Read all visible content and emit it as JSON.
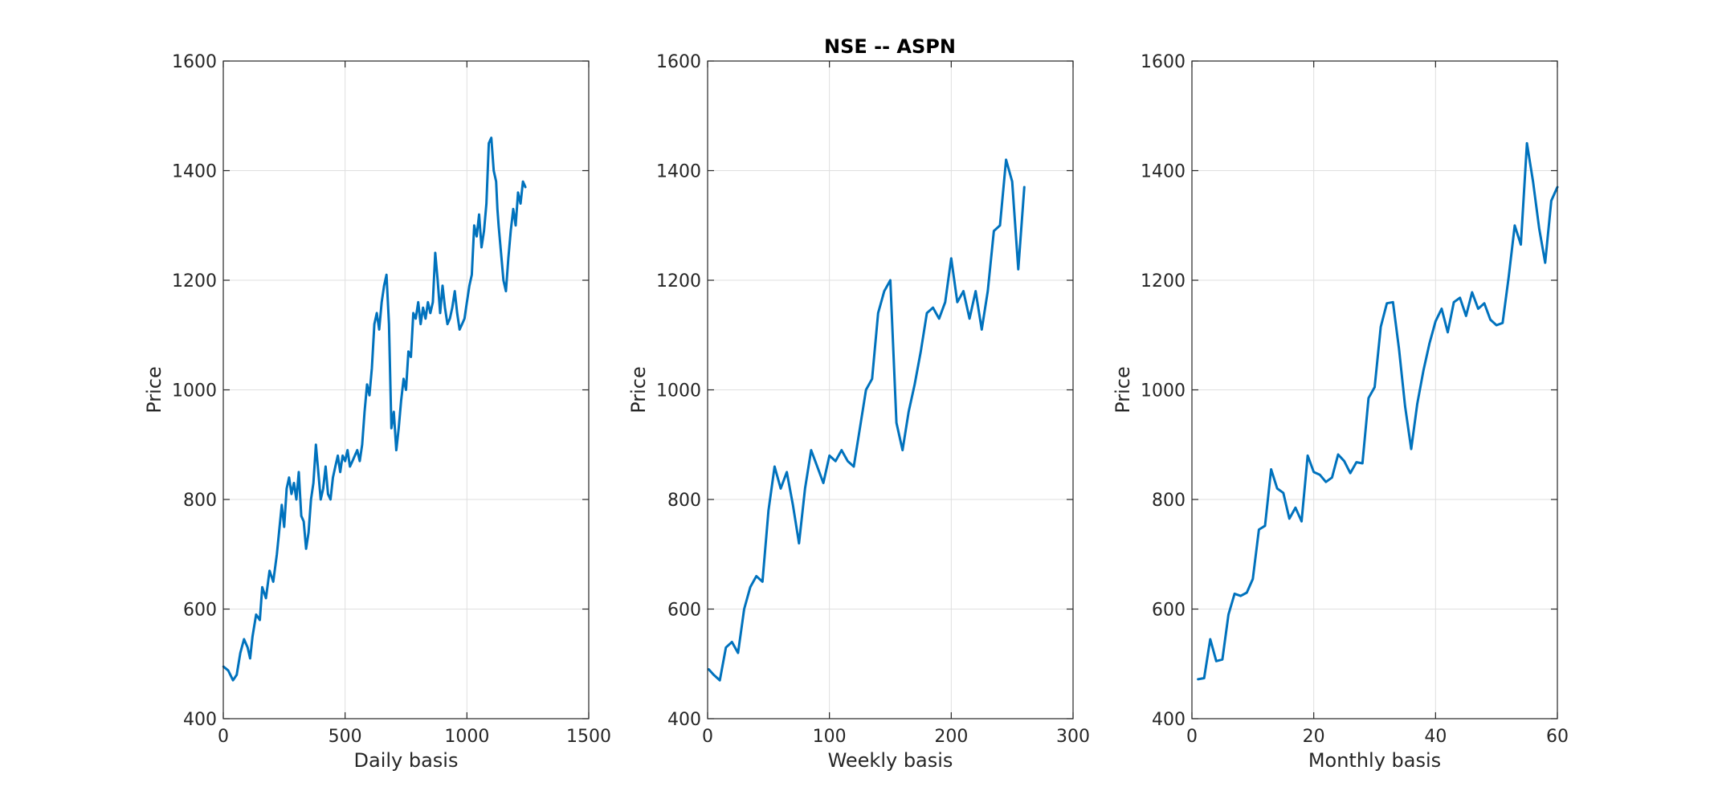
{
  "figure": {
    "title": "NSE -- ASPN",
    "line_color": "#0072BD",
    "grid": true
  },
  "chart_data": [
    {
      "type": "line",
      "title": "",
      "xlabel": "Daily basis",
      "ylabel": "Price",
      "xlim": [
        0,
        1500
      ],
      "ylim": [
        400,
        1600
      ],
      "xticks": [
        0,
        500,
        1000,
        1500
      ],
      "yticks": [
        400,
        600,
        800,
        1000,
        1200,
        1400,
        1600
      ],
      "series": [
        {
          "x": [
            1,
            20,
            40,
            55,
            70,
            85,
            100,
            110,
            120,
            135,
            150,
            160,
            175,
            190,
            205,
            220,
            240,
            250,
            260,
            270,
            280,
            290,
            300,
            310,
            320,
            330,
            340,
            350,
            360,
            370,
            380,
            390,
            400,
            410,
            420,
            430,
            440,
            450,
            460,
            470,
            480,
            490,
            500,
            510,
            520,
            530,
            540,
            550,
            560,
            570,
            580,
            590,
            600,
            610,
            620,
            630,
            640,
            650,
            660,
            670,
            680,
            690,
            700,
            710,
            720,
            730,
            740,
            750,
            760,
            770,
            780,
            790,
            800,
            810,
            820,
            830,
            840,
            850,
            860,
            870,
            880,
            890,
            900,
            910,
            920,
            930,
            940,
            950,
            960,
            970,
            980,
            990,
            1000,
            1010,
            1020,
            1030,
            1040,
            1050,
            1060,
            1070,
            1080,
            1090,
            1100,
            1110,
            1120,
            1125,
            1130,
            1140,
            1150,
            1160,
            1170,
            1180,
            1190,
            1200,
            1210,
            1220,
            1230,
            1240
          ],
          "values": [
            495,
            488,
            470,
            480,
            520,
            545,
            530,
            510,
            550,
            590,
            580,
            640,
            620,
            670,
            650,
            700,
            790,
            750,
            820,
            840,
            810,
            830,
            800,
            850,
            770,
            760,
            710,
            740,
            800,
            830,
            900,
            850,
            800,
            820,
            860,
            810,
            800,
            840,
            860,
            880,
            850,
            880,
            870,
            890,
            860,
            870,
            880,
            890,
            870,
            900,
            960,
            1010,
            990,
            1040,
            1120,
            1140,
            1110,
            1160,
            1190,
            1210,
            1120,
            930,
            960,
            890,
            930,
            980,
            1020,
            1000,
            1070,
            1060,
            1140,
            1130,
            1160,
            1120,
            1150,
            1130,
            1160,
            1140,
            1160,
            1250,
            1200,
            1140,
            1190,
            1150,
            1120,
            1130,
            1150,
            1180,
            1140,
            1110,
            1120,
            1130,
            1160,
            1190,
            1210,
            1300,
            1280,
            1320,
            1260,
            1290,
            1340,
            1450,
            1460,
            1400,
            1380,
            1330,
            1300,
            1250,
            1200,
            1180,
            1240,
            1290,
            1330,
            1300,
            1360,
            1340,
            1380,
            1370
          ]
        }
      ]
    },
    {
      "type": "line",
      "title": "NSE -- ASPN",
      "xlabel": "Weekly basis",
      "ylabel": "Price",
      "xlim": [
        0,
        300
      ],
      "ylim": [
        400,
        1600
      ],
      "xticks": [
        0,
        100,
        200,
        300
      ],
      "yticks": [
        400,
        600,
        800,
        1000,
        1200,
        1400,
        1600
      ],
      "series": [
        {
          "x": [
            1,
            5,
            10,
            15,
            20,
            25,
            30,
            35,
            40,
            45,
            50,
            55,
            60,
            65,
            70,
            75,
            80,
            85,
            90,
            95,
            100,
            105,
            110,
            115,
            120,
            125,
            130,
            135,
            140,
            145,
            150,
            155,
            160,
            165,
            170,
            175,
            180,
            185,
            190,
            195,
            200,
            205,
            210,
            215,
            220,
            225,
            230,
            235,
            240,
            245,
            250,
            255,
            260
          ],
          "values": [
            490,
            480,
            470,
            530,
            540,
            520,
            600,
            640,
            660,
            650,
            780,
            860,
            820,
            850,
            790,
            720,
            820,
            890,
            860,
            830,
            880,
            870,
            890,
            870,
            860,
            930,
            1000,
            1020,
            1140,
            1180,
            1200,
            940,
            890,
            960,
            1010,
            1070,
            1140,
            1150,
            1130,
            1160,
            1240,
            1160,
            1180,
            1130,
            1180,
            1110,
            1180,
            1290,
            1300,
            1420,
            1380,
            1220,
            1370
          ]
        }
      ]
    },
    {
      "type": "line",
      "title": "",
      "xlabel": "Monthly basis",
      "ylabel": "Price",
      "xlim": [
        0,
        60
      ],
      "ylim": [
        400,
        1600
      ],
      "xticks": [
        0,
        20,
        40,
        60
      ],
      "yticks": [
        400,
        600,
        800,
        1000,
        1200,
        1400,
        1600
      ],
      "series": [
        {
          "x": [
            1,
            2,
            3,
            4,
            5,
            6,
            7,
            8,
            9,
            10,
            11,
            12,
            13,
            14,
            15,
            16,
            17,
            18,
            19,
            20,
            21,
            22,
            23,
            24,
            25,
            26,
            27,
            28,
            29,
            30,
            31,
            32,
            33,
            34,
            35,
            36,
            37,
            38,
            39,
            40,
            41,
            42,
            43,
            44,
            45,
            46,
            47,
            48,
            49,
            50,
            51,
            52,
            53,
            54,
            55,
            56,
            57,
            58,
            59,
            60
          ],
          "values": [
            472,
            474,
            545,
            505,
            508,
            590,
            628,
            624,
            630,
            655,
            745,
            752,
            855,
            820,
            812,
            765,
            785,
            760,
            880,
            850,
            845,
            832,
            840,
            882,
            870,
            848,
            868,
            866,
            985,
            1005,
            1115,
            1158,
            1160,
            1075,
            970,
            892,
            975,
            1035,
            1085,
            1125,
            1148,
            1105,
            1160,
            1168,
            1135,
            1178,
            1148,
            1158,
            1128,
            1118,
            1122,
            1205,
            1300,
            1265,
            1450,
            1380,
            1295,
            1232,
            1345,
            1370
          ]
        }
      ]
    }
  ]
}
